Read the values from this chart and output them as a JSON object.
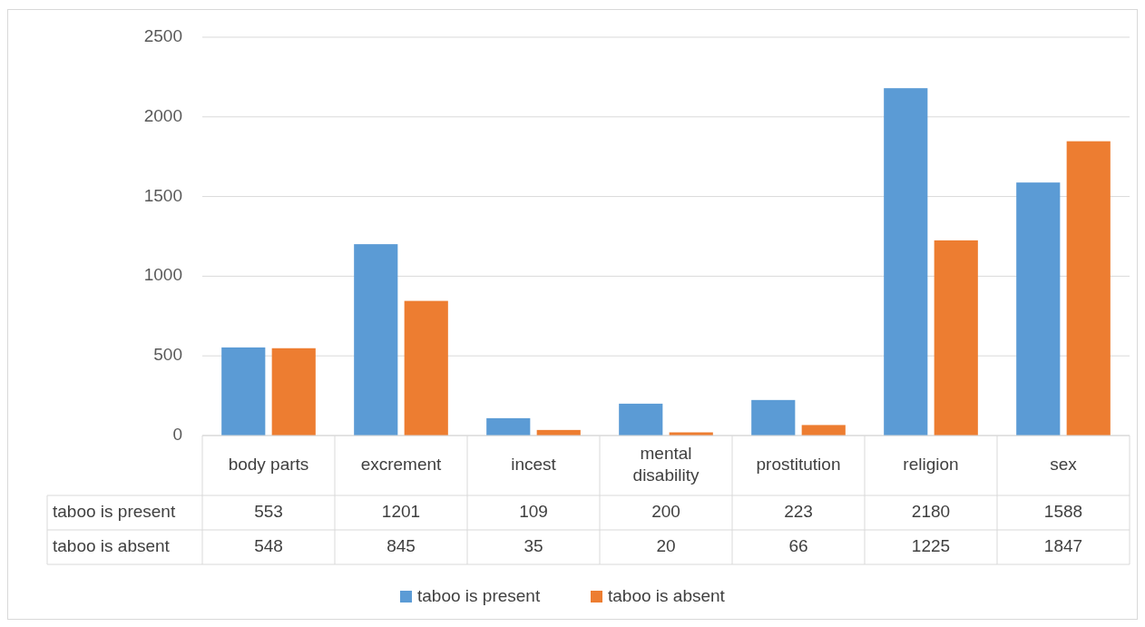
{
  "chart_data": {
    "type": "bar",
    "categories": [
      "body parts",
      "excrement",
      "incest",
      "mental disability",
      "prostitution",
      "religion",
      "sex"
    ],
    "series": [
      {
        "name": "taboo is present",
        "color": "#5b9bd5",
        "values": [
          553,
          1201,
          109,
          200,
          223,
          2180,
          1588
        ]
      },
      {
        "name": "taboo is absent",
        "color": "#ed7d31",
        "values": [
          548,
          845,
          35,
          20,
          66,
          1225,
          1847
        ]
      }
    ],
    "ylim": [
      0,
      2500
    ],
    "yticks": [
      0,
      500,
      1000,
      1500,
      2000,
      2500
    ],
    "grid": "y",
    "legend": "bottom",
    "data_labels": true
  }
}
